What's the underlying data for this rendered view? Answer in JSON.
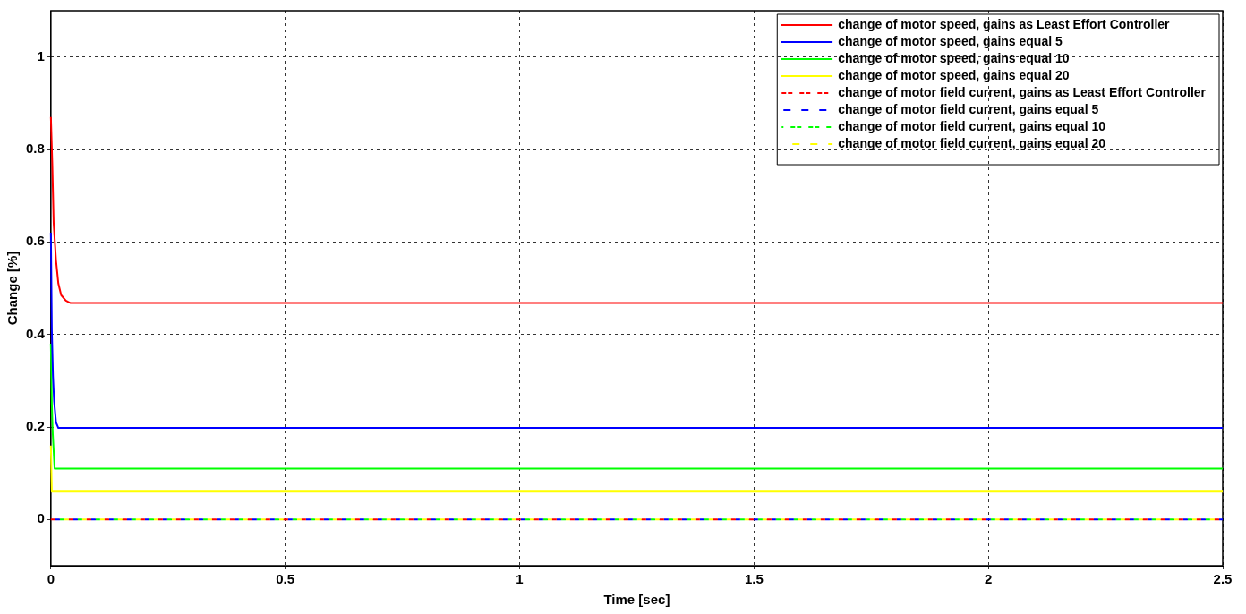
{
  "chart_data": {
    "type": "line",
    "xlabel": "Time [sec]",
    "ylabel": "Change [%]",
    "xlim": [
      0,
      2.5
    ],
    "xticks": [
      0,
      0.5,
      1,
      1.5,
      2,
      2.5
    ],
    "ylim": [
      -0.1,
      1.1
    ],
    "yticks": [
      0,
      0.2,
      0.4,
      0.6,
      0.8,
      1
    ],
    "grid": true,
    "legend": "top right",
    "marker": "none",
    "series": [
      {
        "name": "change of motor speed, gains as Least Effort Controller",
        "color": "#ff0000",
        "line_style": "solid",
        "x": [
          0,
          0.003,
          0.006,
          0.011,
          0.016,
          0.022,
          0.032,
          0.042,
          2.5
        ],
        "values": [
          0.87,
          0.77,
          0.64,
          0.56,
          0.51,
          0.485,
          0.473,
          0.468,
          0.468
        ]
      },
      {
        "name": "change of motor speed, gains equal 5",
        "color": "#0000ff",
        "line_style": "solid",
        "x": [
          0,
          0.002,
          0.0045,
          0.007,
          0.011,
          0.016,
          2.5
        ],
        "values": [
          0.62,
          0.41,
          0.31,
          0.255,
          0.21,
          0.198,
          0.198
        ]
      },
      {
        "name": "change of motor speed, gains equal 10",
        "color": "#00ff00",
        "line_style": "solid",
        "x": [
          0,
          0.002,
          0.004,
          0.008,
          2.5
        ],
        "values": [
          0.38,
          0.25,
          0.186,
          0.11,
          0.11
        ]
      },
      {
        "name": "change of motor speed, gains equal 20",
        "color": "#ffff00",
        "line_style": "solid",
        "x": [
          0,
          0.002,
          2.5
        ],
        "values": [
          0.16,
          0.06,
          0.06
        ]
      },
      {
        "name": "change of motor field current, gains as Least Effort Controller",
        "color": "#ff0000",
        "line_style": "dashed",
        "x": [
          0,
          2.5
        ],
        "values": [
          0,
          0
        ]
      },
      {
        "name": "change of motor field current, gains equal 5",
        "color": "#0000ff",
        "line_style": "dashed",
        "x": [
          0,
          2.5
        ],
        "values": [
          0,
          0
        ]
      },
      {
        "name": "change of motor field current, gains equal 10",
        "color": "#00ff00",
        "line_style": "dashed",
        "x": [
          0,
          2.5
        ],
        "values": [
          0,
          0
        ]
      },
      {
        "name": "change of motor field current, gains equal 20",
        "color": "#ffff00",
        "line_style": "dashed",
        "x": [
          0,
          2.5
        ],
        "values": [
          0,
          0
        ]
      }
    ]
  }
}
